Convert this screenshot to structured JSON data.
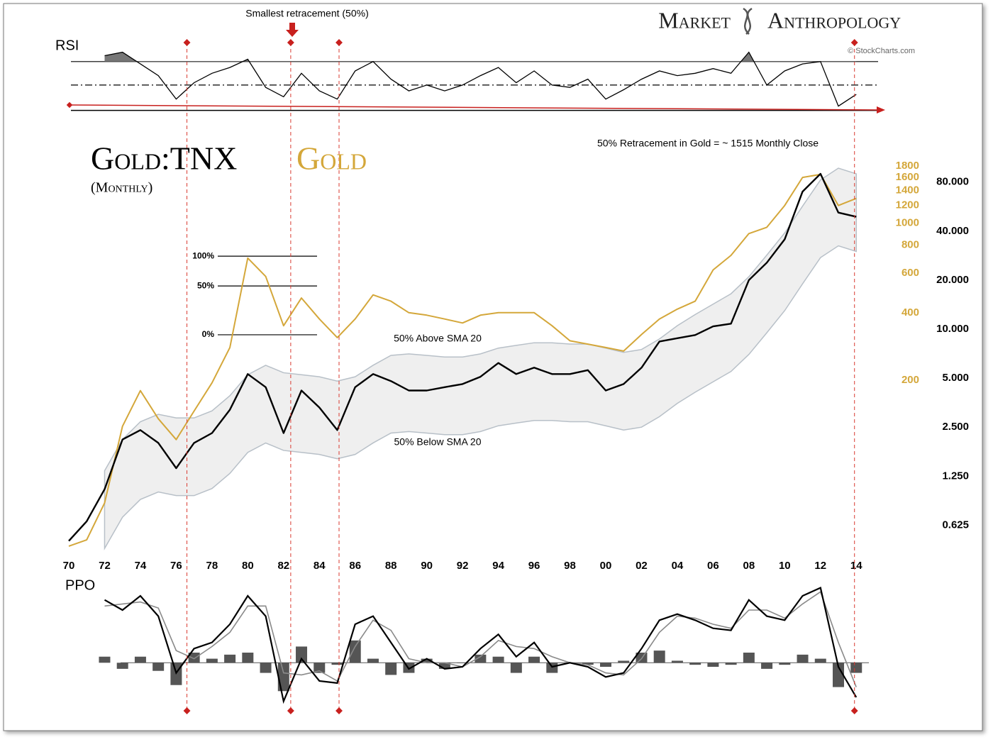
{
  "logo": {
    "left": "Market",
    "right": "Anthropology"
  },
  "credit": "© StockCharts.com",
  "note": "Smallest retracement (50%)",
  "event_lines": [
    1976.6,
    1982.4,
    1985.1,
    2013.9
  ],
  "chart_data": [
    {
      "type": "line",
      "subtitle": "(Monthly)",
      "yscale": "log",
      "y2scale": "log",
      "x": [
        1970,
        1971,
        1972,
        1973,
        1974,
        1975,
        1976,
        1977,
        1978,
        1979,
        1980,
        1981,
        1982,
        1983,
        1984,
        1985,
        1986,
        1987,
        1988,
        1989,
        1990,
        1991,
        1992,
        1993,
        1994,
        1995,
        1996,
        1997,
        1998,
        1999,
        2000,
        2001,
        2002,
        2003,
        2004,
        2005,
        2006,
        2007,
        2008,
        2009,
        2010,
        2011,
        2012,
        2013,
        2014
      ],
      "xlim": [
        1970,
        2015.1
      ],
      "xticks": [
        {
          "value": 1970,
          "label": "70"
        },
        {
          "value": 1972,
          "label": "72"
        },
        {
          "value": 1974,
          "label": "74"
        },
        {
          "value": 1976,
          "label": "76"
        },
        {
          "value": 1978,
          "label": "78"
        },
        {
          "value": 1980,
          "label": "80"
        },
        {
          "value": 1982,
          "label": "82"
        },
        {
          "value": 1984,
          "label": "84"
        },
        {
          "value": 1986,
          "label": "86"
        },
        {
          "value": 1988,
          "label": "88"
        },
        {
          "value": 1990,
          "label": "90"
        },
        {
          "value": 1992,
          "label": "92"
        },
        {
          "value": 1994,
          "label": "94"
        },
        {
          "value": 1996,
          "label": "96"
        },
        {
          "value": 1998,
          "label": "98"
        },
        {
          "value": 2000,
          "label": "00"
        },
        {
          "value": 2002,
          "label": "02"
        },
        {
          "value": 2004,
          "label": "04"
        },
        {
          "value": 2006,
          "label": "06"
        },
        {
          "value": 2008,
          "label": "08"
        },
        {
          "value": 2010,
          "label": "10"
        },
        {
          "value": 2012,
          "label": "12"
        },
        {
          "value": 2014,
          "label": "14"
        }
      ],
      "ylim": [
        0.42,
        110
      ],
      "yticks": [
        0.625,
        {
          "value": 1.25,
          "label": "1.250"
        },
        {
          "value": 2.5,
          "label": "2.500"
        },
        {
          "value": 5,
          "label": "5.000"
        },
        {
          "value": 10,
          "label": "10.000"
        },
        {
          "value": 20,
          "label": "20.000"
        },
        {
          "value": 40,
          "label": "40.000"
        },
        {
          "value": 80,
          "label": "80.000"
        }
      ],
      "y2lim": [
        34,
        1920
      ],
      "y2ticks": [
        200,
        400,
        600,
        800,
        1000,
        1200,
        1400,
        1600,
        1800
      ],
      "series": [
        {
          "name": "Gold:TNX",
          "color": "#000000",
          "values": [
            0.5,
            0.66,
            1.04,
            2.1,
            2.4,
            2.0,
            1.4,
            2.0,
            2.3,
            3.2,
            5.3,
            4.4,
            2.3,
            4.2,
            3.3,
            2.4,
            4.4,
            5.3,
            4.8,
            4.2,
            4.2,
            4.4,
            4.6,
            5.1,
            6.2,
            5.3,
            5.8,
            5.3,
            5.3,
            5.6,
            4.2,
            4.6,
            5.8,
            8.4,
            8.8,
            9.2,
            10.4,
            10.8,
            20,
            25.6,
            35.6,
            70,
            90,
            52,
            49
          ]
        },
        {
          "name": "Gold",
          "color": "#d4a73a",
          "axis": "y2",
          "values": [
            36.6,
            39,
            57,
            125,
            180,
            135,
            109,
            146,
            195,
            280,
            700,
            580,
            350,
            465,
            375,
            310,
            375,
            480,
            450,
            400,
            390,
            375,
            360,
            390,
            400,
            400,
            400,
            350,
            300,
            290,
            280,
            270,
            320,
            375,
            415,
            450,
            620,
            720,
            900,
            960,
            1200,
            1600,
            1650,
            1200,
            1290
          ]
        }
      ],
      "band": {
        "color": "#efefef",
        "edge": "#b8c0c8",
        "upper": [
          null,
          null,
          1.35,
          2.1,
          2.7,
          3.0,
          2.85,
          2.85,
          3.15,
          3.9,
          5.25,
          6.0,
          5.4,
          5.25,
          5.1,
          4.8,
          5.1,
          6.0,
          6.9,
          7.05,
          6.9,
          6.75,
          6.75,
          7.05,
          7.65,
          7.95,
          8.25,
          8.25,
          8.1,
          8.1,
          7.65,
          7.2,
          7.5,
          8.7,
          10.5,
          12.3,
          14.25,
          16.5,
          21,
          28.5,
          39,
          57,
          82.5,
          97.5,
          90
        ],
        "lower": [
          null,
          null,
          0.45,
          0.7,
          0.9,
          1.0,
          0.95,
          0.95,
          1.05,
          1.3,
          1.75,
          2.0,
          1.8,
          1.75,
          1.7,
          1.6,
          1.7,
          2.0,
          2.3,
          2.35,
          2.3,
          2.25,
          2.25,
          2.35,
          2.55,
          2.65,
          2.75,
          2.75,
          2.7,
          2.7,
          2.55,
          2.4,
          2.5,
          2.9,
          3.5,
          4.1,
          4.75,
          5.5,
          7,
          9.5,
          13,
          19,
          27.5,
          32.5,
          30
        ]
      },
      "retracement_levels": [
        {
          "value": 714,
          "label": "100%"
        },
        {
          "value": 526,
          "label": "50%"
        },
        {
          "value": 319,
          "label": "0%"
        }
      ],
      "annotations": [
        "50% Retracement in Gold = ~ 1515 Monthly Close",
        "50% Above SMA 20",
        "50% Below SMA 20"
      ]
    },
    {
      "type": "line",
      "title": "RSI",
      "x": [
        1970,
        1971,
        1972,
        1973,
        1974,
        1975,
        1976,
        1977,
        1978,
        1979,
        1980,
        1981,
        1982,
        1983,
        1984,
        1985,
        1986,
        1987,
        1988,
        1989,
        1990,
        1991,
        1992,
        1993,
        1994,
        1995,
        1996,
        1997,
        1998,
        1999,
        2000,
        2001,
        2002,
        2003,
        2004,
        2005,
        2006,
        2007,
        2008,
        2009,
        2010,
        2011,
        2012,
        2013,
        2014
      ],
      "ylim": [
        29,
        85
      ],
      "levels": [
        70,
        50
      ],
      "shade_above": 70,
      "series": [
        {
          "color": "#000000",
          "values": [
            null,
            null,
            75,
            78,
            68,
            58,
            38,
            52,
            60,
            65,
            72,
            48,
            40,
            60,
            45,
            38,
            62,
            70,
            55,
            45,
            50,
            45,
            50,
            58,
            65,
            52,
            62,
            50,
            48,
            55,
            38,
            46,
            55,
            62,
            58,
            60,
            64,
            60,
            78,
            50,
            62,
            68,
            70,
            32,
            42
          ]
        }
      ]
    },
    {
      "type": "ppo",
      "title": "PPO",
      "x": [
        1970,
        1971,
        1972,
        1973,
        1974,
        1975,
        1976,
        1977,
        1978,
        1979,
        1980,
        1981,
        1982,
        1983,
        1984,
        1985,
        1986,
        1987,
        1988,
        1989,
        1990,
        1991,
        1992,
        1993,
        1994,
        1995,
        1996,
        1997,
        1998,
        1999,
        2000,
        2001,
        2002,
        2003,
        2004,
        2005,
        2006,
        2007,
        2008,
        2009,
        2010,
        2011,
        2012,
        2013,
        2014
      ],
      "ylim": [
        -2.3,
        4
      ],
      "series": [
        {
          "color": "#000000",
          "values": [
            null,
            null,
            3.1,
            2.6,
            3.3,
            2.3,
            -0.5,
            0.7,
            1.0,
            1.9,
            3.3,
            2.3,
            -1.9,
            0.2,
            -0.9,
            -1.0,
            1.9,
            2.3,
            1.0,
            -0.3,
            0.2,
            -0.3,
            -0.2,
            0.7,
            1.4,
            0.3,
            1.0,
            -0.2,
            0,
            -0.2,
            -0.7,
            -0.5,
            0.7,
            2.1,
            2.4,
            2.1,
            1.7,
            1.6,
            3.1,
            2.3,
            2.1,
            3.3,
            3.7,
            -0.2,
            -1.7
          ]
        },
        {
          "color": "#8a8a8a",
          "values": [
            null,
            null,
            2.8,
            2.9,
            3.0,
            2.7,
            0.6,
            0.2,
            0.8,
            1.5,
            2.8,
            2.8,
            -0.5,
            -0.6,
            -0.4,
            -0.9,
            0.8,
            2.1,
            1.6,
            0.2,
            0,
            0,
            -0.2,
            0.3,
            1.1,
            0.8,
            0.7,
            0.3,
            0,
            -0.1,
            -0.5,
            -0.6,
            0.2,
            1.5,
            2.3,
            2.2,
            1.9,
            1.7,
            2.6,
            2.6,
            2.2,
            2.9,
            3.5,
            1.0,
            -1.2
          ]
        }
      ],
      "histogram": {
        "color": "#555555",
        "values": [
          null,
          null,
          0.3,
          -0.3,
          0.3,
          -0.4,
          -1.1,
          0.5,
          0.2,
          0.4,
          0.5,
          -0.5,
          -1.4,
          0.8,
          -0.5,
          -0.1,
          1.1,
          0.2,
          -0.6,
          -0.5,
          0.2,
          -0.3,
          0,
          0.4,
          0.3,
          -0.5,
          0.3,
          -0.5,
          0,
          -0.1,
          -0.2,
          0.1,
          0.5,
          0.6,
          0.1,
          -0.1,
          -0.2,
          -0.1,
          0.5,
          -0.3,
          -0.1,
          0.4,
          0.2,
          -1.2,
          -0.5
        ]
      }
    }
  ]
}
